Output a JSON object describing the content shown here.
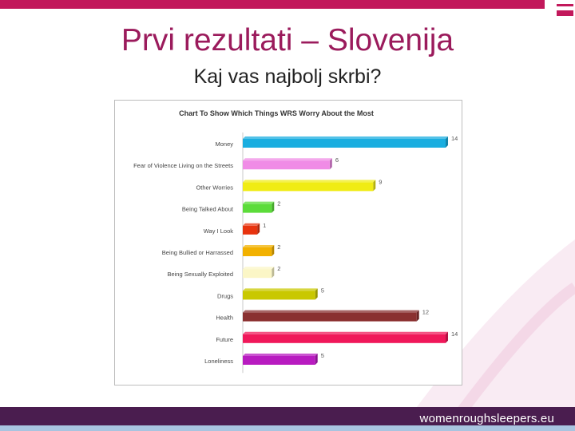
{
  "slide": {
    "title": "Prvi rezultati – Slovenija",
    "subtitle": "Kaj vas najbolj skrbi?",
    "footer_url": "womenroughsleepers.eu",
    "accent_color": "#c2185b",
    "footer_color": "#4a1d4f"
  },
  "chart_data": {
    "type": "bar",
    "orientation": "horizontal",
    "title": "Chart To Show Which Things WRS Worry About the Most",
    "categories": [
      "Money",
      "Fear of Violence Living on the Streets",
      "Other Worries",
      "Being Talked About",
      "Way I Look",
      "Being Bullied or Harrassed",
      "Being Sexually Exploited",
      "Drugs",
      "Health",
      "Future",
      "Loneliness"
    ],
    "values": [
      14,
      6,
      9,
      2,
      1,
      2,
      2,
      5,
      12,
      14,
      5
    ],
    "colors": [
      "#1aaee0",
      "#f08ce6",
      "#f0ec14",
      "#5cdc3a",
      "#e8330e",
      "#f2b100",
      "#fbf6c6",
      "#c9c800",
      "#8a3030",
      "#f0185a",
      "#b81bc0"
    ],
    "xlim": [
      0,
      14
    ],
    "grid": false,
    "legend": "none"
  }
}
